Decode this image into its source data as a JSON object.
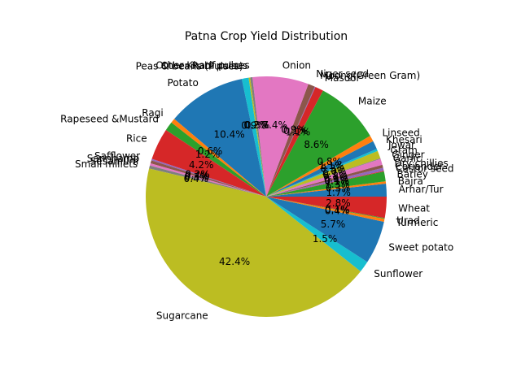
{
  "chart_data": {
    "type": "pie",
    "title": "Patna Crop Yield Distribution",
    "start_angle_deg": 0,
    "direction": "counterclockwise",
    "slices": [
      {
        "label": "Arhar/Tur",
        "pct": "1.7%",
        "value": 1.7,
        "color": "#1f77b4"
      },
      {
        "label": "Bajra",
        "pct": "0.3%",
        "value": 0.3,
        "color": "#ff7f0e"
      },
      {
        "label": "Barley",
        "pct": "1.3%",
        "value": 1.3,
        "color": "#2ca02c"
      },
      {
        "label": "Castor seed",
        "pct": "0.1%",
        "value": 0.1,
        "color": "#d62728"
      },
      {
        "label": "Coriander",
        "pct": "0.4%",
        "value": 0.4,
        "color": "#9467bd"
      },
      {
        "label": "Dry chillies",
        "pct": "0.4%",
        "value": 0.4,
        "color": "#8c564b"
      },
      {
        "label": "Garlic",
        "pct": "0.8%",
        "value": 0.8,
        "color": "#e377c2"
      },
      {
        "label": "Ginger",
        "pct": "0.1%",
        "value": 0.1,
        "color": "#7f7f7f"
      },
      {
        "label": "Gram",
        "pct": "1.0%",
        "value": 1.0,
        "color": "#bcbd22"
      },
      {
        "label": "Jowar",
        "pct": "0.3%",
        "value": 0.3,
        "color": "#17becf"
      },
      {
        "label": "Khesari",
        "pct": "1.1%",
        "value": 1.1,
        "color": "#1f77b4"
      },
      {
        "label": "Linseed",
        "pct": "0.8%",
        "value": 0.8,
        "color": "#ff7f0e"
      },
      {
        "label": "Maize",
        "pct": "8.6%",
        "value": 8.6,
        "color": "#2ca02c"
      },
      {
        "label": "Masoor",
        "pct": "1.1%",
        "value": 1.1,
        "color": "#d62728"
      },
      {
        "label": "Moong(Green Gram)",
        "pct": "0.1%",
        "value": 0.1,
        "color": "#9467bd"
      },
      {
        "label": "Niger seed",
        "pct": "0.9%",
        "value": 0.9,
        "color": "#8c564b"
      },
      {
        "label": "Onion",
        "pct": "7.4%",
        "value": 7.4,
        "color": "#e377c2"
      },
      {
        "label": "Other Kharif pulses",
        "pct": "0.3%",
        "value": 0.3,
        "color": "#7f7f7f"
      },
      {
        "label": "Other Rabi pulses",
        "pct": "0.2%",
        "value": 0.2,
        "color": "#bcbd22"
      },
      {
        "label": "Peas & beans (Pulses)",
        "pct": "0.9%",
        "value": 0.9,
        "color": "#17becf"
      },
      {
        "label": "Potato",
        "pct": "10.4%",
        "value": 10.4,
        "color": "#1f77b4"
      },
      {
        "label": "Ragi",
        "pct": "0.6%",
        "value": 0.6,
        "color": "#ff7f0e"
      },
      {
        "label": "Rapeseed &Mustard",
        "pct": "1.2%",
        "value": 1.2,
        "color": "#2ca02c"
      },
      {
        "label": "Rice",
        "pct": "4.2%",
        "value": 4.2,
        "color": "#d62728"
      },
      {
        "label": "Safflower",
        "pct": "0.2%",
        "value": 0.2,
        "color": "#9467bd"
      },
      {
        "label": "Sannhamp",
        "pct": "0.4%",
        "value": 0.4,
        "color": "#8c564b"
      },
      {
        "label": "Sesamum",
        "pct": "0.3%",
        "value": 0.3,
        "color": "#e377c2"
      },
      {
        "label": "Small millets",
        "pct": "0.4%",
        "value": 0.4,
        "color": "#7f7f7f"
      },
      {
        "label": "Sugarcane",
        "pct": "42.4%",
        "value": 42.4,
        "color": "#bcbd22"
      },
      {
        "label": "Sunflower",
        "pct": "1.5%",
        "value": 1.5,
        "color": "#17becf"
      },
      {
        "label": "Sweet potato",
        "pct": "5.7%",
        "value": 5.7,
        "color": "#1f77b4"
      },
      {
        "label": "Turmeric",
        "pct": "0.4%",
        "value": 0.4,
        "color": "#ff7f0e"
      },
      {
        "label": "Urad",
        "pct": "0.1%",
        "value": 0.1,
        "color": "#2ca02c"
      },
      {
        "label": "Wheat",
        "pct": "2.8%",
        "value": 2.8,
        "color": "#d62728"
      }
    ]
  }
}
